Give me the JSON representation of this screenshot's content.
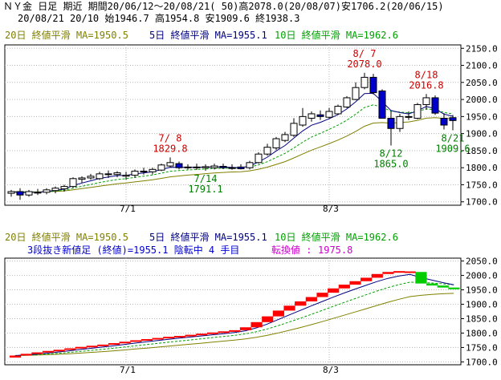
{
  "header": {
    "line1": "ＮＹ金 日足 期近 期間20/06/12〜20/08/21( 50)高2078.0(20/08/07)安1706.2(20/06/15)",
    "line2": "20/08/21 20/10 始1946.7 高1954.8 安1909.6 終1938.3"
  },
  "colors": {
    "ma20": "#808000",
    "ma5": "#000080",
    "ma10": "#00a000",
    "up_candle": "#ffffff",
    "down_candle": "#0000cc",
    "annotation_high": "#cc0000",
    "annotation_low": "#008000",
    "brick_up": "#ff0000",
    "brick_down": "#00cc00",
    "info_text": "#0000cc",
    "turn_text": "#cc00cc"
  },
  "chart_data": [
    {
      "type": "candlestick",
      "legend": [
        "20日 終値平滑 MA=1950.5",
        "5日 終値平滑 MA=1955.1",
        "10日 終値平滑 MA=1962.6"
      ],
      "ylim": [
        1690,
        2160
      ],
      "yticks": [
        "2150.0",
        "2100.0",
        "2050.0",
        "2000.0",
        "1950.0",
        "1900.0",
        "1850.0",
        "1800.0",
        "1750.0",
        "1700.0"
      ],
      "yticks_values": [
        2150,
        2100,
        2050,
        2000,
        1950,
        1900,
        1850,
        1800,
        1750,
        1700
      ],
      "xticks": [
        "7/1",
        "8/3"
      ],
      "xticks_index": [
        13,
        36
      ],
      "candles": [
        {
          "o": 1725,
          "h": 1735,
          "l": 1715,
          "c": 1730
        },
        {
          "o": 1730,
          "h": 1740,
          "l": 1706,
          "c": 1720
        },
        {
          "o": 1720,
          "h": 1735,
          "l": 1715,
          "c": 1730
        },
        {
          "o": 1728,
          "h": 1738,
          "l": 1720,
          "c": 1728
        },
        {
          "o": 1728,
          "h": 1740,
          "l": 1722,
          "c": 1735
        },
        {
          "o": 1733,
          "h": 1745,
          "l": 1725,
          "c": 1740
        },
        {
          "o": 1738,
          "h": 1750,
          "l": 1730,
          "c": 1745
        },
        {
          "o": 1745,
          "h": 1772,
          "l": 1740,
          "c": 1768
        },
        {
          "o": 1766,
          "h": 1775,
          "l": 1755,
          "c": 1770
        },
        {
          "o": 1770,
          "h": 1782,
          "l": 1765,
          "c": 1775
        },
        {
          "o": 1768,
          "h": 1788,
          "l": 1764,
          "c": 1782
        },
        {
          "o": 1780,
          "h": 1792,
          "l": 1770,
          "c": 1782
        },
        {
          "o": 1780,
          "h": 1790,
          "l": 1772,
          "c": 1785
        },
        {
          "o": 1775,
          "h": 1788,
          "l": 1765,
          "c": 1778
        },
        {
          "o": 1778,
          "h": 1795,
          "l": 1770,
          "c": 1790
        },
        {
          "o": 1788,
          "h": 1800,
          "l": 1780,
          "c": 1790
        },
        {
          "o": 1788,
          "h": 1800,
          "l": 1780,
          "c": 1795
        },
        {
          "o": 1793,
          "h": 1812,
          "l": 1790,
          "c": 1808
        },
        {
          "o": 1805,
          "h": 1830,
          "l": 1800,
          "c": 1815
        },
        {
          "o": 1812,
          "h": 1818,
          "l": 1795,
          "c": 1800
        },
        {
          "o": 1800,
          "h": 1810,
          "l": 1795,
          "c": 1802
        },
        {
          "o": 1802,
          "h": 1812,
          "l": 1794,
          "c": 1800
        },
        {
          "o": 1800,
          "h": 1810,
          "l": 1791,
          "c": 1803
        },
        {
          "o": 1800,
          "h": 1812,
          "l": 1795,
          "c": 1805
        },
        {
          "o": 1804,
          "h": 1812,
          "l": 1796,
          "c": 1800
        },
        {
          "o": 1800,
          "h": 1810,
          "l": 1794,
          "c": 1800
        },
        {
          "o": 1802,
          "h": 1810,
          "l": 1795,
          "c": 1797
        },
        {
          "o": 1800,
          "h": 1820,
          "l": 1795,
          "c": 1815
        },
        {
          "o": 1815,
          "h": 1845,
          "l": 1812,
          "c": 1840
        },
        {
          "o": 1840,
          "h": 1870,
          "l": 1835,
          "c": 1860
        },
        {
          "o": 1858,
          "h": 1890,
          "l": 1852,
          "c": 1885
        },
        {
          "o": 1880,
          "h": 1905,
          "l": 1875,
          "c": 1897
        },
        {
          "o": 1895,
          "h": 1945,
          "l": 1890,
          "c": 1930
        },
        {
          "o": 1925,
          "h": 1975,
          "l": 1920,
          "c": 1950
        },
        {
          "o": 1945,
          "h": 1965,
          "l": 1935,
          "c": 1958
        },
        {
          "o": 1955,
          "h": 1968,
          "l": 1940,
          "c": 1950
        },
        {
          "o": 1948,
          "h": 1975,
          "l": 1944,
          "c": 1965
        },
        {
          "o": 1958,
          "h": 1985,
          "l": 1955,
          "c": 1980
        },
        {
          "o": 1978,
          "h": 2010,
          "l": 1975,
          "c": 2005
        },
        {
          "o": 2000,
          "h": 2050,
          "l": 1998,
          "c": 2035
        },
        {
          "o": 2035,
          "h": 2078,
          "l": 2030,
          "c": 2065
        },
        {
          "o": 2065,
          "h": 2075,
          "l": 2015,
          "c": 2020
        },
        {
          "o": 2025,
          "h": 2030,
          "l": 1945,
          "c": 1945
        },
        {
          "o": 1945,
          "h": 1965,
          "l": 1865,
          "c": 1915
        },
        {
          "o": 1915,
          "h": 1958,
          "l": 1905,
          "c": 1950
        },
        {
          "o": 1950,
          "h": 1965,
          "l": 1940,
          "c": 1950
        },
        {
          "o": 1945,
          "h": 1990,
          "l": 1942,
          "c": 1985
        },
        {
          "o": 1985,
          "h": 2016,
          "l": 1970,
          "c": 2005
        },
        {
          "o": 2005,
          "h": 2012,
          "l": 1955,
          "c": 1960
        },
        {
          "o": 1945,
          "h": 1960,
          "l": 1912,
          "c": 1925
        },
        {
          "o": 1946.7,
          "h": 1954.8,
          "l": 1909.6,
          "c": 1938.3
        }
      ],
      "annotations": [
        {
          "index": 18,
          "kind": "high",
          "lines": [
            "7/ 8",
            "1829.8"
          ]
        },
        {
          "index": 22,
          "kind": "low",
          "lines": [
            "7/14",
            "1791.1"
          ]
        },
        {
          "index": 40,
          "kind": "high",
          "lines": [
            "8/ 7",
            "2078.0"
          ]
        },
        {
          "index": 43,
          "kind": "low",
          "lines": [
            "8/12",
            "1865.0"
          ]
        },
        {
          "index": 47,
          "kind": "high",
          "lines": [
            "8/18",
            "2016.8"
          ]
        },
        {
          "index": 50,
          "kind": "low",
          "lines": [
            "8/21",
            "1909.6"
          ]
        }
      ]
    },
    {
      "type": "three_line_break",
      "legend": [
        "20日 終値平滑 MA=1950.5",
        "5日 終値平滑 MA=1955.1",
        "10日 終値平滑 MA=1962.6"
      ],
      "info": "3段抜き新値足 (終値)=1955.1 陰転中  4 手目",
      "turn_label": "転換値 :",
      "turn_value": "1975.8",
      "ylim": [
        1690,
        2060
      ],
      "yticks": [
        "2050.0",
        "2000.0",
        "1950.0",
        "1900.0",
        "1850.0",
        "1800.0",
        "1750.0",
        "1700.0"
      ],
      "yticks_values": [
        2050,
        2000,
        1950,
        1900,
        1850,
        1800,
        1750,
        1700
      ],
      "xticks": [
        "7/1",
        "8/3"
      ],
      "xticks_index": [
        13,
        36
      ],
      "bricks": [
        {
          "dir": "up",
          "from": 1715,
          "to": 1722
        },
        {
          "dir": "up",
          "from": 1722,
          "to": 1728
        },
        {
          "dir": "up",
          "from": 1728,
          "to": 1733
        },
        {
          "dir": "up",
          "from": 1733,
          "to": 1738
        },
        {
          "dir": "up",
          "from": 1738,
          "to": 1742
        },
        {
          "dir": "up",
          "from": 1742,
          "to": 1747
        },
        {
          "dir": "up",
          "from": 1747,
          "to": 1752
        },
        {
          "dir": "up",
          "from": 1752,
          "to": 1756
        },
        {
          "dir": "up",
          "from": 1756,
          "to": 1760
        },
        {
          "dir": "up",
          "from": 1760,
          "to": 1765
        },
        {
          "dir": "up",
          "from": 1765,
          "to": 1770
        },
        {
          "dir": "up",
          "from": 1770,
          "to": 1775
        },
        {
          "dir": "up",
          "from": 1775,
          "to": 1779
        },
        {
          "dir": "up",
          "from": 1779,
          "to": 1783
        },
        {
          "dir": "up",
          "from": 1783,
          "to": 1787
        },
        {
          "dir": "up",
          "from": 1787,
          "to": 1790
        },
        {
          "dir": "up",
          "from": 1790,
          "to": 1794
        },
        {
          "dir": "up",
          "from": 1794,
          "to": 1798
        },
        {
          "dir": "up",
          "from": 1798,
          "to": 1802
        },
        {
          "dir": "up",
          "from": 1802,
          "to": 1806
        },
        {
          "dir": "up",
          "from": 1806,
          "to": 1810
        },
        {
          "dir": "up",
          "from": 1810,
          "to": 1820
        },
        {
          "dir": "up",
          "from": 1820,
          "to": 1838
        },
        {
          "dir": "up",
          "from": 1838,
          "to": 1858
        },
        {
          "dir": "up",
          "from": 1858,
          "to": 1878
        },
        {
          "dir": "up",
          "from": 1878,
          "to": 1895
        },
        {
          "dir": "up",
          "from": 1895,
          "to": 1910
        },
        {
          "dir": "up",
          "from": 1910,
          "to": 1925
        },
        {
          "dir": "up",
          "from": 1925,
          "to": 1940
        },
        {
          "dir": "up",
          "from": 1940,
          "to": 1955
        },
        {
          "dir": "up",
          "from": 1955,
          "to": 1968
        },
        {
          "dir": "up",
          "from": 1968,
          "to": 1980
        },
        {
          "dir": "up",
          "from": 1980,
          "to": 1992
        },
        {
          "dir": "up",
          "from": 1992,
          "to": 2005
        },
        {
          "dir": "up",
          "from": 2005,
          "to": 2012
        },
        {
          "dir": "up",
          "from": 2012,
          "to": 2015
        },
        {
          "dir": "up",
          "from": 2012,
          "to": 2014
        },
        {
          "dir": "down",
          "from": 2012,
          "to": 1972
        },
        {
          "dir": "down",
          "from": 1972,
          "to": 1965
        },
        {
          "dir": "down",
          "from": 1965,
          "to": 1958
        },
        {
          "dir": "down",
          "from": 1958,
          "to": 1952
        }
      ]
    }
  ]
}
